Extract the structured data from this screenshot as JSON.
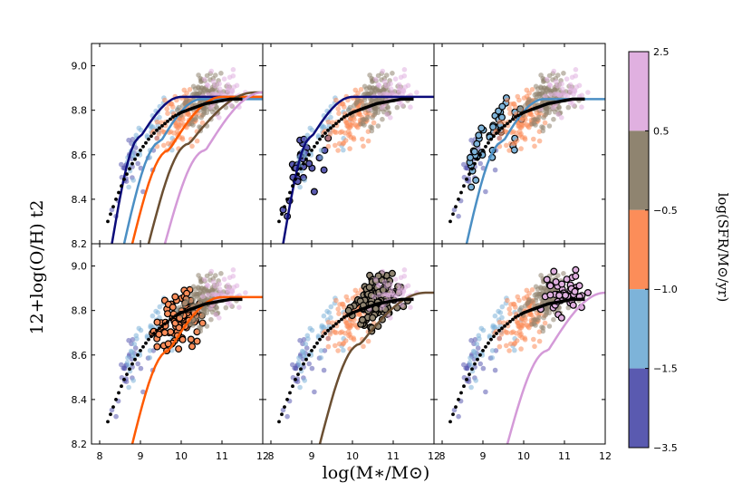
{
  "chart_data": {
    "type": "scatter",
    "layout": "2x3 panel grid with shared axes and a stepped colorbar",
    "xlabel": "log(M∗/M⊙)",
    "ylabel": "12+log(O/H)   t2",
    "xlim": [
      7.8,
      12.0
    ],
    "ylim": [
      8.2,
      9.1
    ],
    "xticks": [
      "8",
      "9",
      "10",
      "11",
      "12"
    ],
    "yticks": [
      "8.2",
      "8.4",
      "8.6",
      "8.8",
      "9.0"
    ],
    "colorbar": {
      "label": "log(SFR/M⊙/yr)",
      "tick_labels": [
        "2.5",
        "0.5",
        "−0.5",
        "−1.0",
        "−1.5",
        "−3.5"
      ],
      "bins": [
        {
          "range": "0.5 to 2.5",
          "color": "#e0b0e0"
        },
        {
          "range": "-0.5 to 0.5",
          "color": "#8f8470"
        },
        {
          "range": "-1.0 to -0.5",
          "color": "#fc8d59"
        },
        {
          "range": "-1.5 to -1.0",
          "color": "#7db3d9"
        },
        {
          "range": "-3.5 to -1.5",
          "color": "#5a5ab0"
        }
      ]
    },
    "reference_curve": {
      "label": "binned median (black dots)",
      "x": [
        8.2,
        8.4,
        8.6,
        8.8,
        9.0,
        9.2,
        9.4,
        9.6,
        9.8,
        10.0,
        10.3,
        10.6,
        10.9,
        11.2,
        11.5
      ],
      "y": [
        8.3,
        8.4,
        8.49,
        8.56,
        8.62,
        8.67,
        8.71,
        8.74,
        8.77,
        8.79,
        8.81,
        8.83,
        8.84,
        8.85,
        8.85
      ]
    },
    "panels": [
      {
        "position": "top-left",
        "highlighted_bin": "all fits",
        "fit_curves": [
          "navy",
          "steelblue",
          "orange",
          "brown",
          "violet"
        ]
      },
      {
        "position": "top-middle",
        "highlighted_bin": "-3.5 to -1.5",
        "fit_curves": [
          "navy"
        ]
      },
      {
        "position": "top-right",
        "highlighted_bin": "-1.5 to -1.0",
        "fit_curves": [
          "steelblue"
        ]
      },
      {
        "position": "bottom-left",
        "highlighted_bin": "-1.0 to -0.5",
        "fit_curves": [
          "orange"
        ]
      },
      {
        "position": "bottom-middle",
        "highlighted_bin": "-0.5 to 0.5",
        "fit_curves": [
          "brown"
        ]
      },
      {
        "position": "bottom-right",
        "highlighted_bin": "0.5 to 2.5",
        "fit_curves": [
          "violet"
        ]
      }
    ],
    "fit_curves": [
      {
        "name": "navy",
        "color": "#0b0b7a",
        "y_at": {
          "8.3": 8.2,
          "9.0": 8.68,
          "10.0": 8.86
        }
      },
      {
        "name": "steelblue",
        "color": "#4b8fc4",
        "y_at": {
          "8.6": 8.2,
          "9.5": 8.66,
          "10.5": 8.85
        }
      },
      {
        "name": "orange",
        "color": "#ff5a00",
        "y_at": {
          "8.8": 8.2,
          "9.7": 8.62,
          "11.0": 8.86
        }
      },
      {
        "name": "brown",
        "color": "#6b4f32",
        "y_at": {
          "9.2": 8.2,
          "10.2": 8.65,
          "11.8": 8.88
        }
      },
      {
        "name": "violet",
        "color": "#d49ad8",
        "y_at": {
          "9.6": 8.2,
          "10.6": 8.62,
          "12.0": 8.88
        }
      }
    ]
  }
}
